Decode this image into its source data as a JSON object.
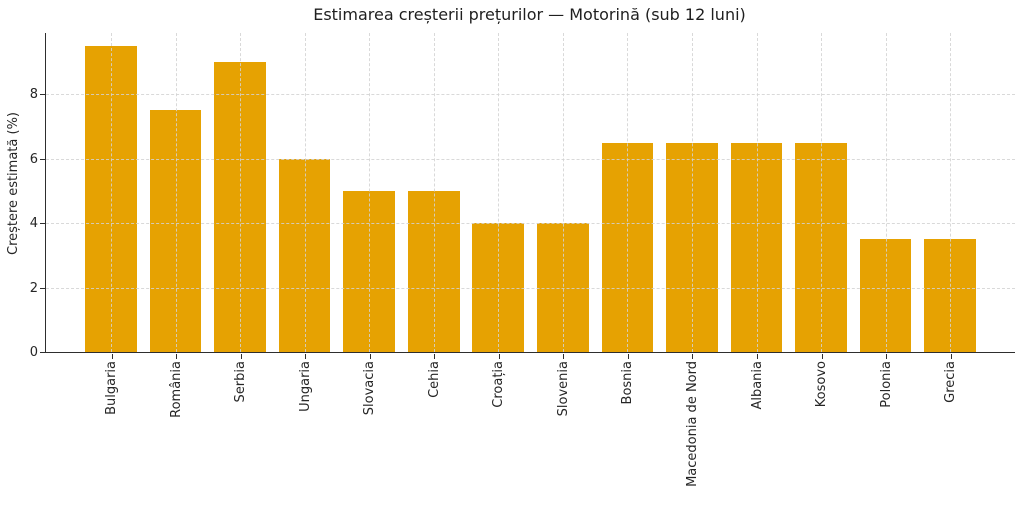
{
  "chart_data": {
    "type": "bar",
    "title": "Estimarea creșterii prețurilor — Motorină (sub 12 luni)",
    "xlabel": "",
    "ylabel": "Creștere estimată (%)",
    "categories": [
      "Bulgaria",
      "România",
      "Serbia",
      "Ungaria",
      "Slovacia",
      "Cehia",
      "Croația",
      "Slovenia",
      "Bosnia",
      "Macedonia de Nord",
      "Albania",
      "Kosovo",
      "Polonia",
      "Grecia"
    ],
    "values": [
      9.5,
      7.5,
      9,
      6,
      5,
      5,
      4,
      4,
      6.5,
      6.5,
      6.5,
      6.5,
      3.5,
      3.5
    ],
    "yticks": [
      0,
      2,
      4,
      6,
      8
    ],
    "ylim": [
      0,
      9.9
    ],
    "grid": true,
    "legend_position": "none",
    "bar_color": "#E6A202",
    "axis_color": "#2e2e2e",
    "grid_color": "#d2d2d2"
  }
}
